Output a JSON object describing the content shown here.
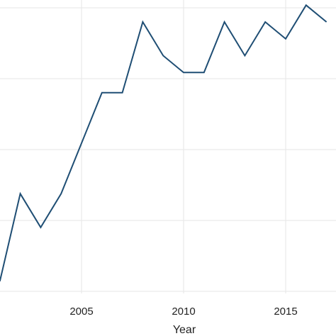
{
  "chart_data": {
    "type": "line",
    "title": "",
    "xlabel": "Year",
    "ylabel": "",
    "grid": true,
    "xlim": [
      2001.0,
      2017.1
    ],
    "ylim": [
      0,
      8
    ],
    "xticks": [
      2005,
      2010,
      2015
    ],
    "yticks": [
      1,
      2,
      3,
      4,
      5,
      6,
      7
    ],
    "colors": {
      "line": "#1f4e74",
      "grid": "#e6e6e6",
      "background": "#ffffff"
    },
    "series": [
      {
        "x": [
          2001,
          2002,
          2003,
          2004,
          2005,
          2006,
          2007,
          2008,
          2009,
          2010,
          2011,
          2012,
          2013,
          2014,
          2015,
          2016,
          2017
        ],
        "values": [
          0.3,
          2.9,
          1.9,
          2.9,
          4.4,
          5.9,
          5.9,
          8.0,
          7.0,
          6.5,
          6.5,
          8.0,
          7.0,
          8.0,
          7.5,
          8.5,
          8.0
        ]
      }
    ]
  }
}
